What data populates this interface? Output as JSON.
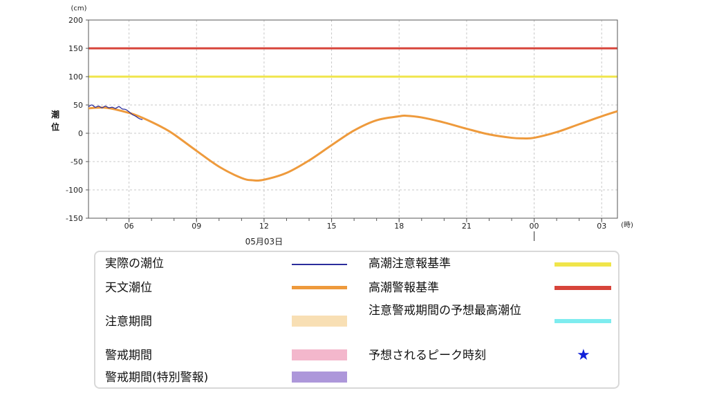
{
  "chart_data": {
    "type": "line",
    "y_unit": "(cm)",
    "x_unit": "(時)",
    "ylabel": "潮位",
    "ylim": [
      -150,
      200
    ],
    "y_ticks": [
      200,
      150,
      100,
      50,
      0,
      -50,
      -100,
      -150
    ],
    "x_range_hours": [
      4.2,
      27.7
    ],
    "x_ticks": [
      {
        "h": 6,
        "label": "06"
      },
      {
        "h": 9,
        "label": "09"
      },
      {
        "h": 12,
        "label": "12"
      },
      {
        "h": 15,
        "label": "15"
      },
      {
        "h": 18,
        "label": "18"
      },
      {
        "h": 21,
        "label": "21"
      },
      {
        "h": 24,
        "label": "00"
      },
      {
        "h": 27,
        "label": "03"
      }
    ],
    "date_label": "05月03日",
    "date_label_hour": 12,
    "day_boundary_hour": 24,
    "grid": true,
    "thresholds": [
      {
        "name": "高潮警報基準",
        "value": 150,
        "color": "#d7443a"
      },
      {
        "name": "高潮注意報基準",
        "value": 100,
        "color": "#f0e54a"
      }
    ],
    "series": [
      {
        "name": "天文潮位",
        "color": "#ee9a3c",
        "x_hours": [
          4.2,
          5.0,
          6.0,
          6.5,
          7.0,
          7.5,
          8.0,
          9.0,
          10.0,
          11.0,
          11.5,
          12.0,
          13.0,
          14.0,
          15.0,
          16.0,
          17.0,
          18.0,
          18.3,
          19.0,
          20.0,
          21.0,
          22.0,
          23.0,
          23.5,
          24.0,
          25.0,
          26.0,
          27.0,
          27.7
        ],
        "values": [
          44,
          45,
          36,
          29,
          20,
          10,
          -2,
          -31,
          -59,
          -79,
          -83,
          -82,
          -70,
          -48,
          -21,
          5,
          23,
          30,
          31,
          28,
          19,
          8,
          -2,
          -8,
          -9,
          -8,
          2,
          16,
          30,
          39
        ]
      },
      {
        "name": "実際の潮位",
        "color": "#2b2d9c",
        "x_hours": [
          4.2,
          4.35,
          4.5,
          4.65,
          4.8,
          4.95,
          5.1,
          5.25,
          5.4,
          5.55,
          5.7,
          5.85,
          6.0,
          6.15,
          6.3,
          6.45,
          6.6
        ],
        "values": [
          47,
          50,
          46,
          48,
          45,
          48,
          45,
          46,
          44,
          47,
          43,
          42,
          38,
          33,
          30,
          26,
          24
        ]
      }
    ],
    "legend": [
      {
        "label": "実際の潮位",
        "kind": "line",
        "color": "#2b2d9c"
      },
      {
        "label": "天文潮位",
        "kind": "thick",
        "color": "#ee9a3c"
      },
      {
        "label": "注意期間",
        "kind": "band",
        "color": "#f8dfb4"
      },
      {
        "label": "警戒期間",
        "kind": "band",
        "color": "#f3b7cc"
      },
      {
        "label": "警戒期間(特別警報)",
        "kind": "band",
        "color": "#ad97da"
      },
      {
        "label": "高潮注意報基準",
        "kind": "thick",
        "color": "#f0e54a"
      },
      {
        "label": "高潮警報基準",
        "kind": "thick",
        "color": "#d7443a"
      },
      {
        "label": "注意警戒期間の予想最高潮位",
        "kind": "thick",
        "color": "#7eecef"
      },
      {
        "label": "予想されるピーク時刻",
        "kind": "star",
        "color": "#1020d8"
      }
    ]
  }
}
